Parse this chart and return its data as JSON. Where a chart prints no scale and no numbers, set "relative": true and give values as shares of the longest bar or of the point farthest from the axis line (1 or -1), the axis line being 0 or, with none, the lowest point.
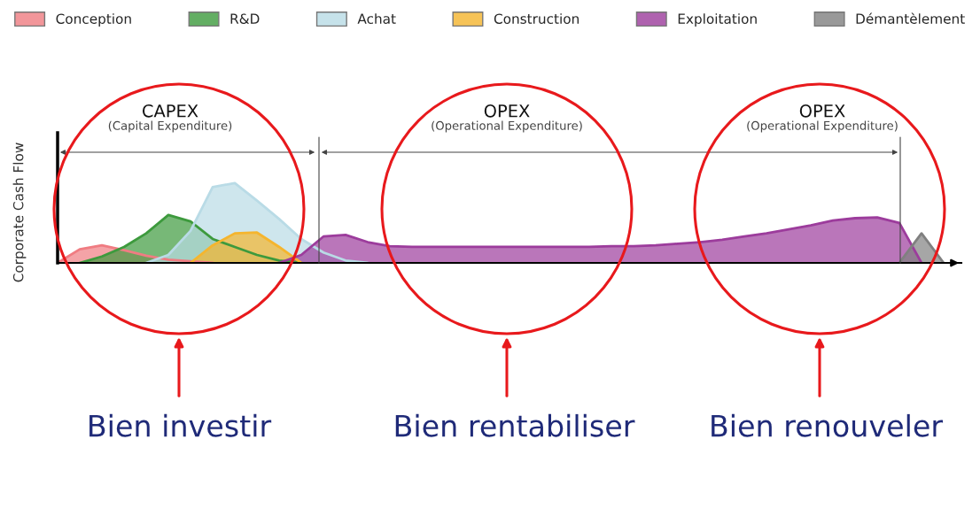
{
  "chart_data": {
    "type": "area",
    "relative": true,
    "ylabel": "Corporate Cash Flow",
    "legend": "top",
    "grid": false,
    "categories": [
      null,
      null,
      null,
      null,
      null,
      null,
      null,
      null,
      null,
      null,
      null,
      null,
      null,
      null,
      null,
      null,
      null,
      null,
      null,
      null,
      null,
      null,
      null,
      null,
      null,
      null,
      null,
      null,
      null,
      null,
      null,
      null,
      null,
      null,
      null,
      null,
      null,
      null,
      null,
      null,
      null
    ],
    "series": [
      {
        "name": "Conception",
        "color": "#f07c82",
        "values": [
          0,
          0.17,
          0.22,
          0.16,
          0.09,
          0.04,
          0.02,
          0,
          null,
          null,
          null,
          null,
          null,
          null,
          null,
          null,
          null,
          null,
          null,
          null,
          null,
          null,
          null,
          null,
          null,
          null,
          null,
          null,
          null,
          null,
          null,
          null,
          null,
          null,
          null,
          null,
          null,
          null,
          null,
          null,
          null
        ]
      },
      {
        "name": "R&D",
        "color": "#3d9a3d",
        "values": [
          null,
          0,
          0.08,
          0.2,
          0.37,
          0.6,
          0.52,
          0.3,
          0.2,
          0.1,
          0.03,
          0,
          null,
          null,
          null,
          null,
          null,
          null,
          null,
          null,
          null,
          null,
          null,
          null,
          null,
          null,
          null,
          null,
          null,
          null,
          null,
          null,
          null,
          null,
          null,
          null,
          null,
          null,
          null,
          null,
          null
        ]
      },
      {
        "name": "Achat",
        "color": "#b9dbe6",
        "values": [
          null,
          null,
          null,
          null,
          0,
          0.1,
          0.4,
          0.95,
          1.0,
          0.78,
          0.55,
          0.3,
          0.13,
          0.03,
          0,
          null,
          null,
          null,
          null,
          null,
          null,
          null,
          null,
          null,
          null,
          null,
          null,
          null,
          null,
          null,
          null,
          null,
          null,
          null,
          null,
          null,
          null,
          null,
          null,
          null,
          null
        ]
      },
      {
        "name": "Construction",
        "color": "#f5b52e",
        "values": [
          null,
          null,
          null,
          null,
          null,
          null,
          0,
          0.22,
          0.37,
          0.38,
          0.2,
          0,
          null,
          null,
          null,
          null,
          null,
          null,
          null,
          null,
          null,
          null,
          null,
          null,
          null,
          null,
          null,
          null,
          null,
          null,
          null,
          null,
          null,
          null,
          null,
          null,
          null,
          null,
          null,
          null,
          null
        ]
      },
      {
        "name": "Exploitation",
        "color": "#9c3c9c",
        "values": [
          null,
          null,
          null,
          null,
          null,
          null,
          null,
          null,
          null,
          null,
          0,
          0.1,
          0.33,
          0.35,
          0.26,
          0.21,
          0.2,
          0.2,
          0.2,
          0.2,
          0.2,
          0.2,
          0.2,
          0.2,
          0.2,
          0.21,
          0.21,
          0.22,
          0.24,
          0.26,
          0.29,
          0.33,
          0.37,
          0.42,
          0.47,
          0.53,
          0.56,
          0.57,
          0.5,
          0,
          null
        ]
      },
      {
        "name": "Démantèlement",
        "color": "#808080",
        "values": [
          null,
          null,
          null,
          null,
          null,
          null,
          null,
          null,
          null,
          null,
          null,
          null,
          null,
          null,
          null,
          null,
          null,
          null,
          null,
          null,
          null,
          null,
          null,
          null,
          null,
          null,
          null,
          null,
          null,
          null,
          null,
          null,
          null,
          null,
          null,
          null,
          null,
          null,
          0,
          0.37,
          0
        ]
      }
    ],
    "annotations": [
      "CAPEX",
      "(Capital Expenditure)",
      "OPEX",
      "(Operational Expenditure)",
      "OPEX",
      "(Operational Expenditure)",
      "Bien investir",
      "Bien rentabiliser",
      "Bien renouveler"
    ]
  }
}
